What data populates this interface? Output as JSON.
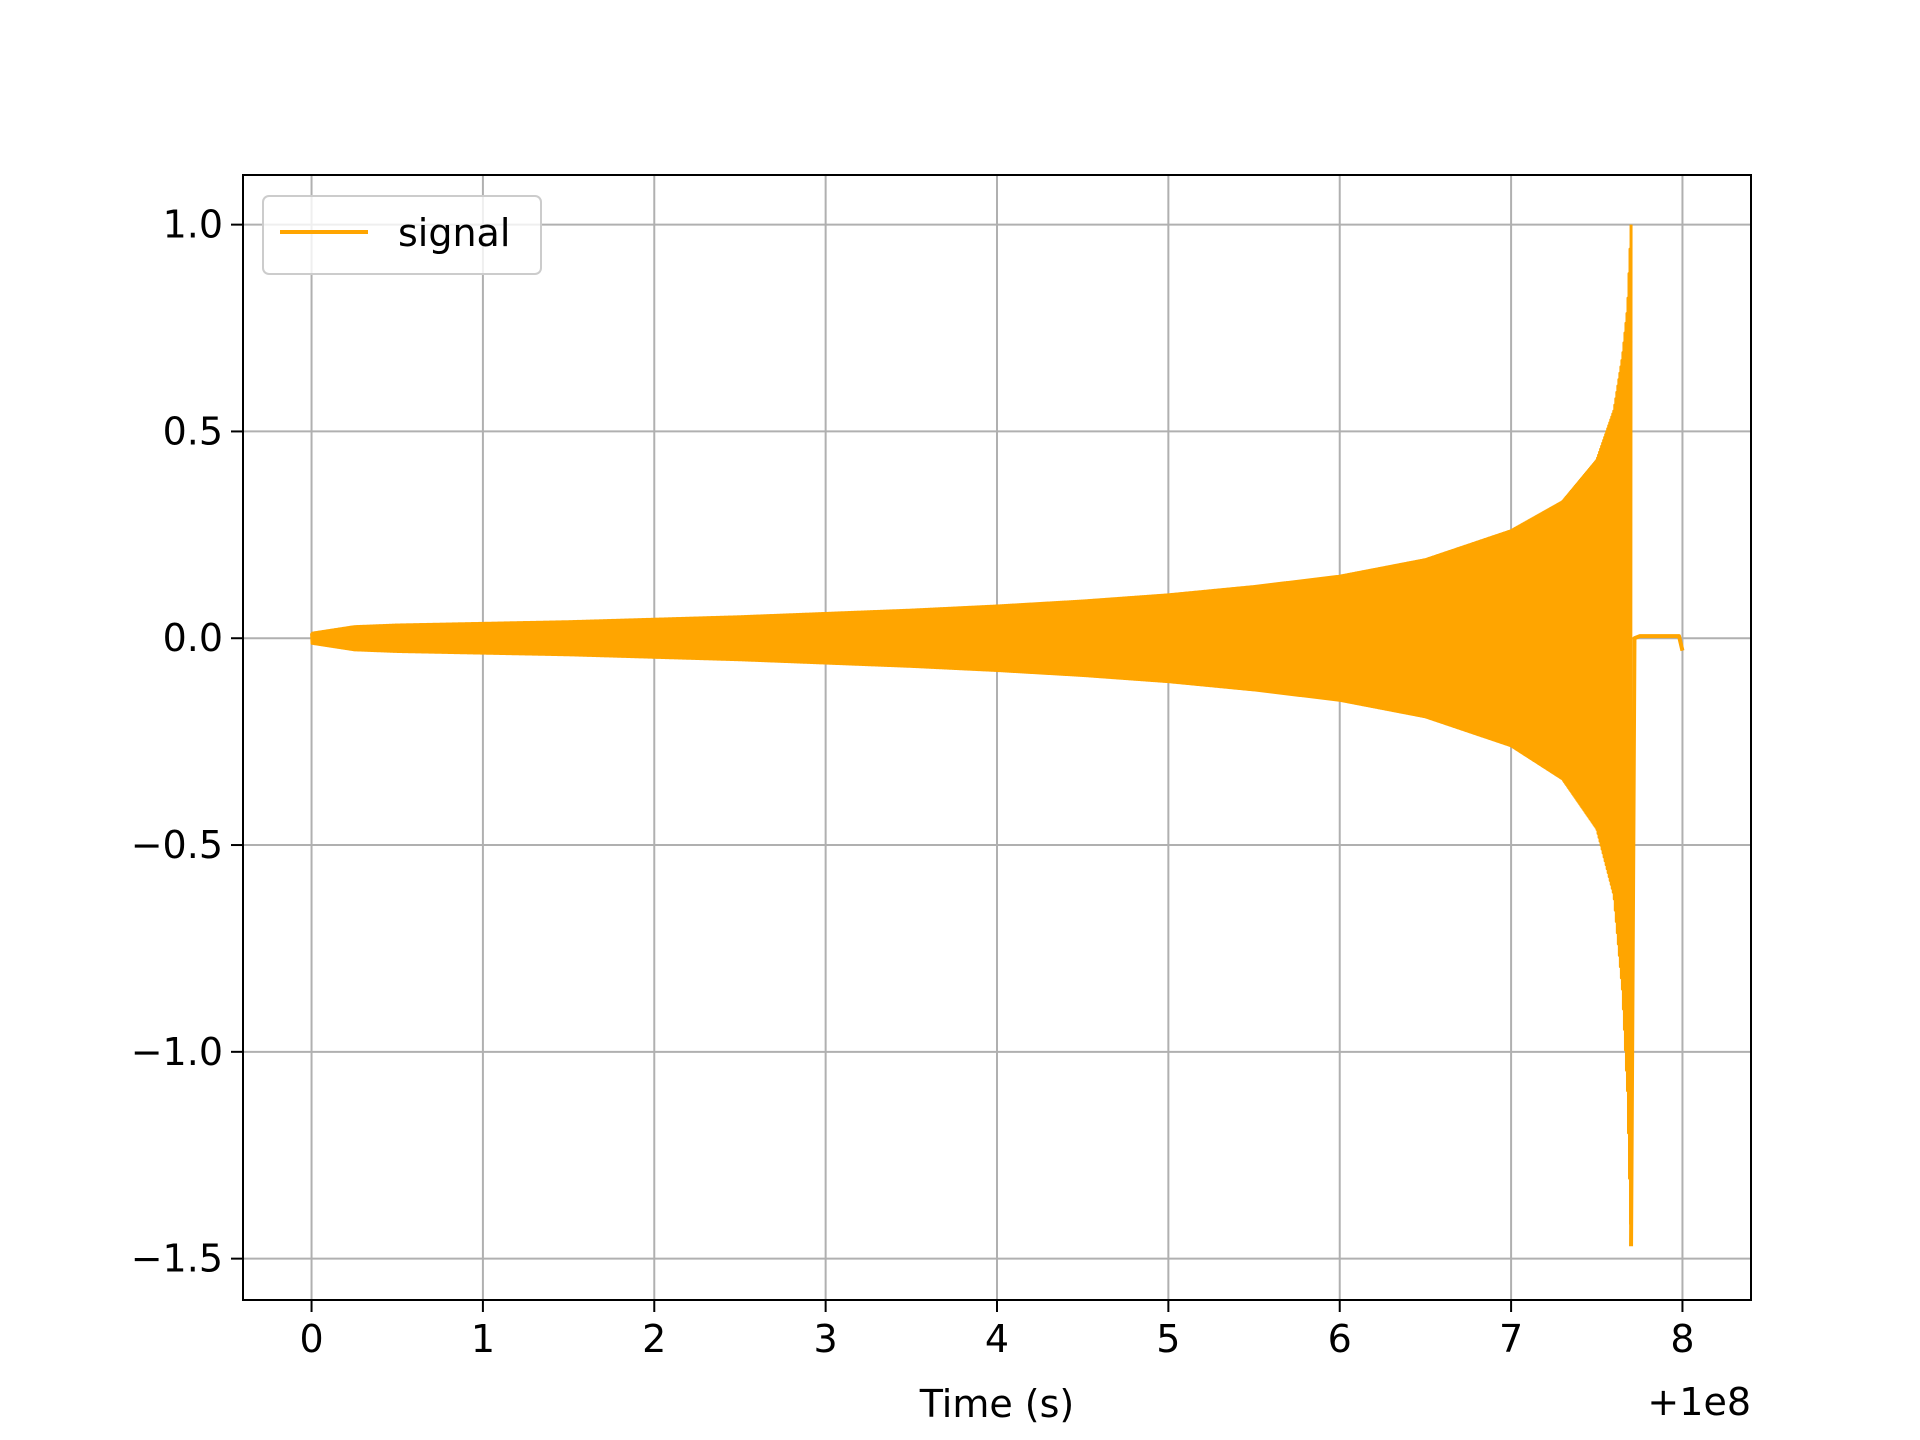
{
  "chart_data": {
    "type": "line",
    "xlabel": "Time (s)",
    "ylabel": "",
    "x_offset_label": "+1e8",
    "xlim": [
      -0.4,
      8.4
    ],
    "ylim": [
      -1.6,
      1.12
    ],
    "grid": true,
    "legend_placement": "top-left",
    "x_ticks": [
      {
        "value": 0,
        "label": "0"
      },
      {
        "value": 1,
        "label": "1"
      },
      {
        "value": 2,
        "label": "2"
      },
      {
        "value": 3,
        "label": "3"
      },
      {
        "value": 4,
        "label": "4"
      },
      {
        "value": 5,
        "label": "5"
      },
      {
        "value": 6,
        "label": "6"
      },
      {
        "value": 7,
        "label": "7"
      },
      {
        "value": 8,
        "label": "8"
      }
    ],
    "y_ticks": [
      {
        "value": 1.0,
        "label": "1.0"
      },
      {
        "value": 0.5,
        "label": "0.5"
      },
      {
        "value": 0.0,
        "label": "0.0"
      },
      {
        "value": -0.5,
        "label": "−0.5"
      },
      {
        "value": -1.0,
        "label": "−1.0"
      },
      {
        "value": -1.5,
        "label": "−1.5"
      }
    ],
    "series": [
      {
        "name": "signal",
        "color": "#ffa500",
        "upper_envelope": {
          "x": [
            0,
            0.25,
            0.5,
            1,
            1.5,
            2,
            2.5,
            3,
            3.5,
            4,
            4.5,
            5,
            5.5,
            6,
            6.5,
            7,
            7.3,
            7.5,
            7.6,
            7.65,
            7.68,
            7.7
          ],
          "y": [
            0.012,
            0.028,
            0.032,
            0.036,
            0.04,
            0.046,
            0.052,
            0.06,
            0.068,
            0.078,
            0.09,
            0.105,
            0.125,
            0.15,
            0.19,
            0.26,
            0.33,
            0.43,
            0.55,
            0.68,
            0.8,
            1.0
          ]
        },
        "lower_envelope": {
          "x": [
            0,
            0.25,
            0.5,
            1,
            1.5,
            2,
            2.5,
            3,
            3.5,
            4,
            4.5,
            5,
            5.5,
            6,
            6.5,
            7,
            7.3,
            7.5,
            7.6,
            7.65,
            7.68,
            7.7
          ],
          "y": [
            -0.012,
            -0.028,
            -0.032,
            -0.036,
            -0.04,
            -0.046,
            -0.052,
            -0.06,
            -0.068,
            -0.078,
            -0.09,
            -0.105,
            -0.125,
            -0.15,
            -0.19,
            -0.26,
            -0.34,
            -0.46,
            -0.62,
            -0.85,
            -1.1,
            -1.47
          ]
        },
        "tail": {
          "x": [
            7.7,
            7.72,
            7.75,
            7.9,
            7.98,
            8.0
          ],
          "y": [
            -1.47,
            0.0,
            0.005,
            0.005,
            0.005,
            -0.03
          ]
        }
      }
    ]
  }
}
